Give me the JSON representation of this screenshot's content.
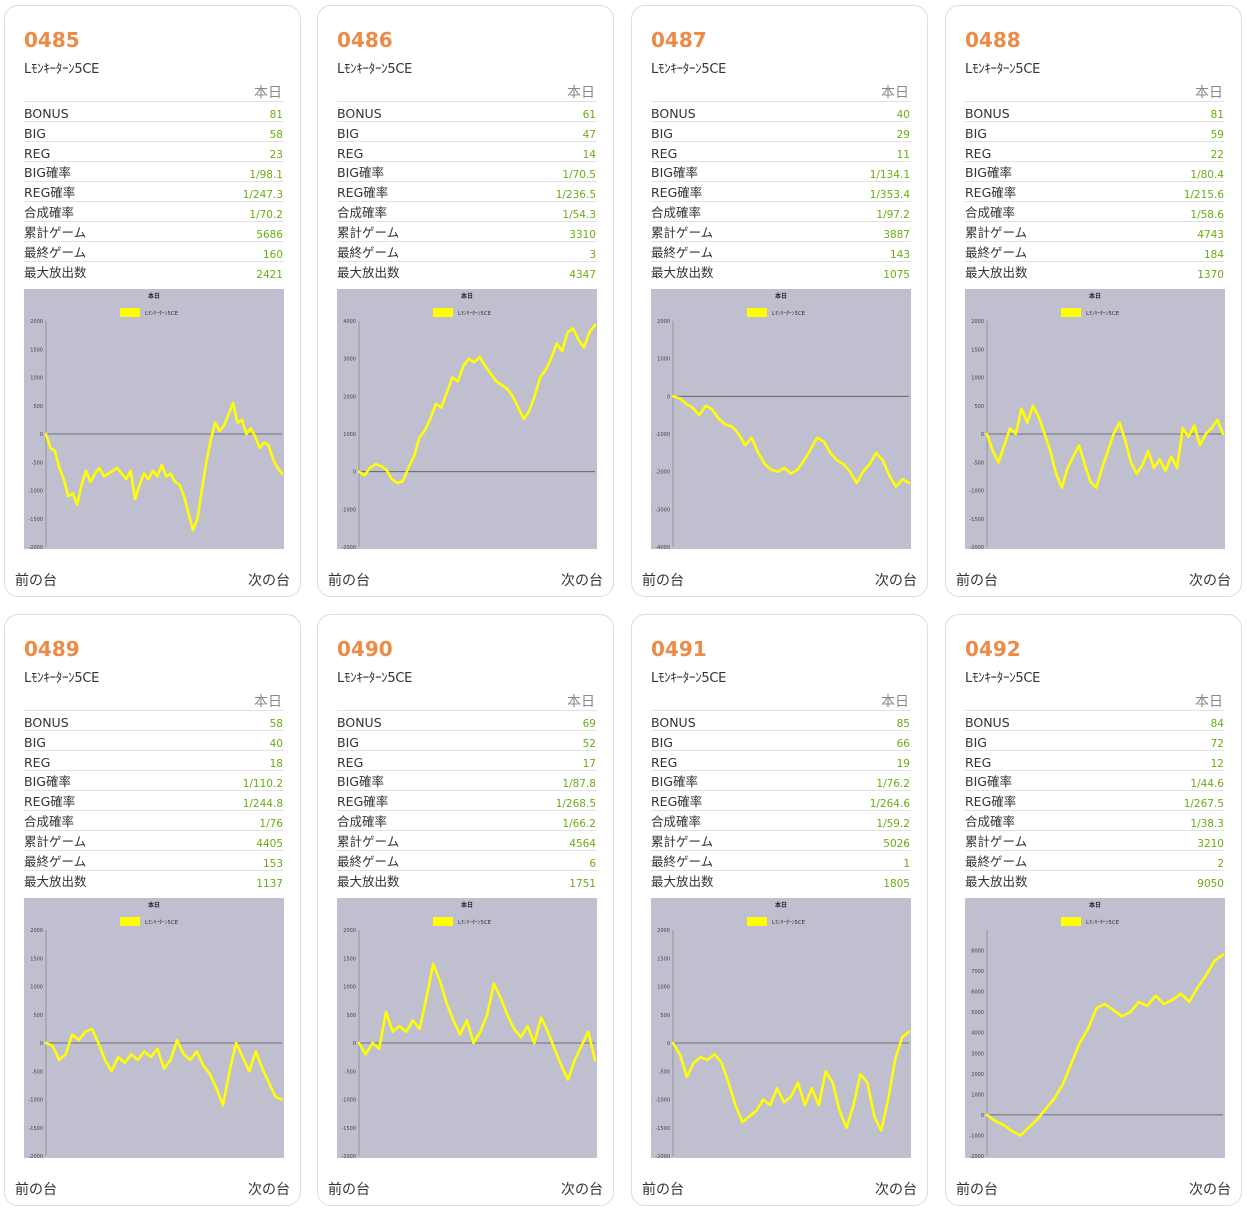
{
  "nav": {
    "prev": "前の台",
    "next": "次の台"
  },
  "colors": {
    "number": "#ec8a46",
    "value": "#6aac14",
    "chart_bg": "#c0bfd0",
    "line": "#ffff00"
  },
  "machines": [
    {
      "number": "0485",
      "name": "Lﾓﾝｷｰﾀｰﾝ5CE",
      "period": "本日",
      "stats": [
        {
          "label": "BONUS",
          "value": "81"
        },
        {
          "label": "BIG",
          "value": "58"
        },
        {
          "label": "REG",
          "value": "23"
        },
        {
          "label": "BIG確率",
          "value": "1/98.1"
        },
        {
          "label": "REG確率",
          "value": "1/247.3"
        },
        {
          "label": "合成確率",
          "value": "1/70.2"
        },
        {
          "label": "累計ゲーム",
          "value": "5686"
        },
        {
          "label": "最終ゲーム",
          "value": "160"
        },
        {
          "label": "最大放出数",
          "value": "2421"
        }
      ],
      "chart_data": {
        "type": "line",
        "title": "本日",
        "legend": "Lﾓﾝｷｰﾀｰﾝ5CE",
        "ylim": [
          -2000,
          2000
        ],
        "yticks": [
          2000,
          1500,
          1000,
          500,
          0,
          -500,
          -1000,
          -1500,
          -2000
        ],
        "values": [
          0,
          -250,
          -300,
          -600,
          -800,
          -1100,
          -1050,
          -1250,
          -900,
          -650,
          -850,
          -700,
          -600,
          -750,
          -700,
          -650,
          -600,
          -700,
          -800,
          -650,
          -1150,
          -900,
          -700,
          -800,
          -650,
          -750,
          -550,
          -750,
          -700,
          -850,
          -900,
          -1100,
          -1400,
          -1700,
          -1500,
          -1000,
          -500,
          -100,
          200,
          50,
          150,
          350,
          550,
          200,
          250,
          0,
          100,
          -50,
          -250,
          -150,
          -200,
          -450,
          -600,
          -700
        ]
      }
    },
    {
      "number": "0486",
      "name": "Lﾓﾝｷｰﾀｰﾝ5CE",
      "period": "本日",
      "stats": [
        {
          "label": "BONUS",
          "value": "61"
        },
        {
          "label": "BIG",
          "value": "47"
        },
        {
          "label": "REG",
          "value": "14"
        },
        {
          "label": "BIG確率",
          "value": "1/70.5"
        },
        {
          "label": "REG確率",
          "value": "1/236.5"
        },
        {
          "label": "合成確率",
          "value": "1/54.3"
        },
        {
          "label": "累計ゲーム",
          "value": "3310"
        },
        {
          "label": "最終ゲーム",
          "value": "3"
        },
        {
          "label": "最大放出数",
          "value": "4347"
        }
      ],
      "chart_data": {
        "type": "line",
        "title": "本日",
        "legend": "Lﾓﾝｷｰﾀｰﾝ5CE",
        "ylim": [
          -2000,
          4000
        ],
        "yticks": [
          4000,
          3000,
          2000,
          1000,
          0,
          -1000,
          -2000
        ],
        "values": [
          0,
          -100,
          100,
          200,
          150,
          50,
          -200,
          -300,
          -250,
          100,
          400,
          900,
          1100,
          1400,
          1800,
          1700,
          2100,
          2500,
          2400,
          2800,
          3000,
          2900,
          3050,
          2800,
          2600,
          2400,
          2300,
          2200,
          2000,
          1700,
          1400,
          1600,
          2000,
          2500,
          2700,
          3000,
          3400,
          3200,
          3700,
          3800,
          3500,
          3300,
          3700,
          3900
        ]
      }
    },
    {
      "number": "0487",
      "name": "Lﾓﾝｷｰﾀｰﾝ5CE",
      "period": "本日",
      "stats": [
        {
          "label": "BONUS",
          "value": "40"
        },
        {
          "label": "BIG",
          "value": "29"
        },
        {
          "label": "REG",
          "value": "11"
        },
        {
          "label": "BIG確率",
          "value": "1/134.1"
        },
        {
          "label": "REG確率",
          "value": "1/353.4"
        },
        {
          "label": "合成確率",
          "value": "1/97.2"
        },
        {
          "label": "累計ゲーム",
          "value": "3887"
        },
        {
          "label": "最終ゲーム",
          "value": "143"
        },
        {
          "label": "最大放出数",
          "value": "1075"
        }
      ],
      "chart_data": {
        "type": "line",
        "title": "本日",
        "legend": "Lﾓﾝｷｰﾀｰﾝ5CE",
        "ylim": [
          -4000,
          2000
        ],
        "yticks": [
          2000,
          1000,
          0,
          -1000,
          -2000,
          -3000,
          -4000
        ],
        "values": [
          0,
          -50,
          -200,
          -300,
          -500,
          -250,
          -350,
          -600,
          -750,
          -800,
          -1000,
          -1300,
          -1100,
          -1500,
          -1800,
          -1950,
          -2000,
          -1900,
          -2050,
          -1950,
          -1700,
          -1400,
          -1100,
          -1200,
          -1500,
          -1700,
          -1800,
          -2000,
          -2300,
          -2000,
          -1800,
          -1500,
          -1700,
          -2100,
          -2400,
          -2200,
          -2300
        ]
      }
    },
    {
      "number": "0488",
      "name": "Lﾓﾝｷｰﾀｰﾝ5CE",
      "period": "本日",
      "stats": [
        {
          "label": "BONUS",
          "value": "81"
        },
        {
          "label": "BIG",
          "value": "59"
        },
        {
          "label": "REG",
          "value": "22"
        },
        {
          "label": "BIG確率",
          "value": "1/80.4"
        },
        {
          "label": "REG確率",
          "value": "1/215.6"
        },
        {
          "label": "合成確率",
          "value": "1/58.6"
        },
        {
          "label": "累計ゲーム",
          "value": "4743"
        },
        {
          "label": "最終ゲーム",
          "value": "184"
        },
        {
          "label": "最大放出数",
          "value": "1370"
        }
      ],
      "chart_data": {
        "type": "line",
        "title": "本日",
        "legend": "Lﾓﾝｷｰﾀｰﾝ5CE",
        "ylim": [
          -2000,
          2000
        ],
        "yticks": [
          2000,
          1500,
          1000,
          500,
          0,
          -500,
          -1000,
          -1500,
          -2000
        ],
        "values": [
          0,
          -300,
          -500,
          -200,
          100,
          0,
          450,
          200,
          500,
          300,
          0,
          -300,
          -700,
          -950,
          -600,
          -400,
          -200,
          -550,
          -850,
          -950,
          -600,
          -300,
          0,
          200,
          -100,
          -500,
          -700,
          -550,
          -300,
          -600,
          -450,
          -650,
          -400,
          -600,
          100,
          -50,
          150,
          -200,
          0,
          100,
          250,
          0
        ]
      }
    },
    {
      "number": "0489",
      "name": "Lﾓﾝｷｰﾀｰﾝ5CE",
      "period": "本日",
      "stats": [
        {
          "label": "BONUS",
          "value": "58"
        },
        {
          "label": "BIG",
          "value": "40"
        },
        {
          "label": "REG",
          "value": "18"
        },
        {
          "label": "BIG確率",
          "value": "1/110.2"
        },
        {
          "label": "REG確率",
          "value": "1/244.8"
        },
        {
          "label": "合成確率",
          "value": "1/76"
        },
        {
          "label": "累計ゲーム",
          "value": "4405"
        },
        {
          "label": "最終ゲーム",
          "value": "153"
        },
        {
          "label": "最大放出数",
          "value": "1137"
        }
      ],
      "chart_data": {
        "type": "line",
        "title": "本日",
        "legend": "Lﾓﾝｷｰﾀｰﾝ5CE",
        "ylim": [
          -2000,
          2000
        ],
        "yticks": [
          2000,
          1500,
          1000,
          500,
          0,
          -500,
          -1000,
          -1500,
          -2000
        ],
        "values": [
          0,
          -50,
          -300,
          -200,
          150,
          50,
          200,
          250,
          0,
          -300,
          -500,
          -250,
          -350,
          -200,
          -300,
          -150,
          -250,
          -100,
          -450,
          -300,
          50,
          -200,
          -300,
          -150,
          -400,
          -550,
          -800,
          -1100,
          -500,
          0,
          -250,
          -500,
          -150,
          -450,
          -700,
          -950,
          -1000
        ]
      }
    },
    {
      "number": "0490",
      "name": "Lﾓﾝｷｰﾀｰﾝ5CE",
      "period": "本日",
      "stats": [
        {
          "label": "BONUS",
          "value": "69"
        },
        {
          "label": "BIG",
          "value": "52"
        },
        {
          "label": "REG",
          "value": "17"
        },
        {
          "label": "BIG確率",
          "value": "1/87.8"
        },
        {
          "label": "REG確率",
          "value": "1/268.5"
        },
        {
          "label": "合成確率",
          "value": "1/66.2"
        },
        {
          "label": "累計ゲーム",
          "value": "4564"
        },
        {
          "label": "最終ゲーム",
          "value": "6"
        },
        {
          "label": "最大放出数",
          "value": "1751"
        }
      ],
      "chart_data": {
        "type": "line",
        "title": "本日",
        "legend": "Lﾓﾝｷｰﾀｰﾝ5CE",
        "ylim": [
          -2000,
          2000
        ],
        "yticks": [
          2000,
          1500,
          1000,
          500,
          0,
          -500,
          -1000,
          -1500,
          -2000
        ],
        "values": [
          0,
          -200,
          0,
          -100,
          550,
          200,
          300,
          200,
          400,
          250,
          800,
          1400,
          1100,
          700,
          400,
          150,
          400,
          0,
          200,
          500,
          1050,
          800,
          500,
          250,
          100,
          300,
          0,
          450,
          200,
          -100,
          -400,
          -650,
          -300,
          -50,
          200,
          -300
        ]
      }
    },
    {
      "number": "0491",
      "name": "Lﾓﾝｷｰﾀｰﾝ5CE",
      "period": "本日",
      "stats": [
        {
          "label": "BONUS",
          "value": "85"
        },
        {
          "label": "BIG",
          "value": "66"
        },
        {
          "label": "REG",
          "value": "19"
        },
        {
          "label": "BIG確率",
          "value": "1/76.2"
        },
        {
          "label": "REG確率",
          "value": "1/264.6"
        },
        {
          "label": "合成確率",
          "value": "1/59.2"
        },
        {
          "label": "累計ゲーム",
          "value": "5026"
        },
        {
          "label": "最終ゲーム",
          "value": "1"
        },
        {
          "label": "最大放出数",
          "value": "1805"
        }
      ],
      "chart_data": {
        "type": "line",
        "title": "本日",
        "legend": "Lﾓﾝｷｰﾀｰﾝ5CE",
        "ylim": [
          -2000,
          2000
        ],
        "yticks": [
          2000,
          1500,
          1000,
          500,
          0,
          -500,
          -1000,
          -1500,
          -2000
        ],
        "values": [
          0,
          -200,
          -600,
          -350,
          -250,
          -300,
          -200,
          -350,
          -700,
          -1100,
          -1400,
          -1300,
          -1200,
          -1000,
          -1100,
          -800,
          -1050,
          -950,
          -700,
          -1100,
          -800,
          -1100,
          -500,
          -700,
          -1200,
          -1500,
          -1100,
          -550,
          -700,
          -1300,
          -1550,
          -1000,
          -300,
          100,
          200
        ]
      }
    },
    {
      "number": "0492",
      "name": "Lﾓﾝｷｰﾀｰﾝ5CE",
      "period": "本日",
      "stats": [
        {
          "label": "BONUS",
          "value": "84"
        },
        {
          "label": "BIG",
          "value": "72"
        },
        {
          "label": "REG",
          "value": "12"
        },
        {
          "label": "BIG確率",
          "value": "1/44.6"
        },
        {
          "label": "REG確率",
          "value": "1/267.5"
        },
        {
          "label": "合成確率",
          "value": "1/38.3"
        },
        {
          "label": "累計ゲーム",
          "value": "3210"
        },
        {
          "label": "最終ゲーム",
          "value": "2"
        },
        {
          "label": "最大放出数",
          "value": "9050"
        }
      ],
      "chart_data": {
        "type": "line",
        "title": "本日",
        "legend": "Lﾓﾝｷｰﾀｰﾝ5CE",
        "ylim": [
          -2000,
          9000
        ],
        "yticks": [
          8000,
          7000,
          6000,
          5000,
          4000,
          3000,
          2000,
          1000,
          0,
          -1000,
          -2000
        ],
        "values": [
          0,
          -300,
          -500,
          -800,
          -1000,
          -600,
          -200,
          300,
          800,
          1500,
          2500,
          3500,
          4200,
          5200,
          5400,
          5100,
          4800,
          5000,
          5500,
          5300,
          5800,
          5400,
          5600,
          5900,
          5500,
          6200,
          6800,
          7500,
          7800
        ]
      }
    }
  ]
}
